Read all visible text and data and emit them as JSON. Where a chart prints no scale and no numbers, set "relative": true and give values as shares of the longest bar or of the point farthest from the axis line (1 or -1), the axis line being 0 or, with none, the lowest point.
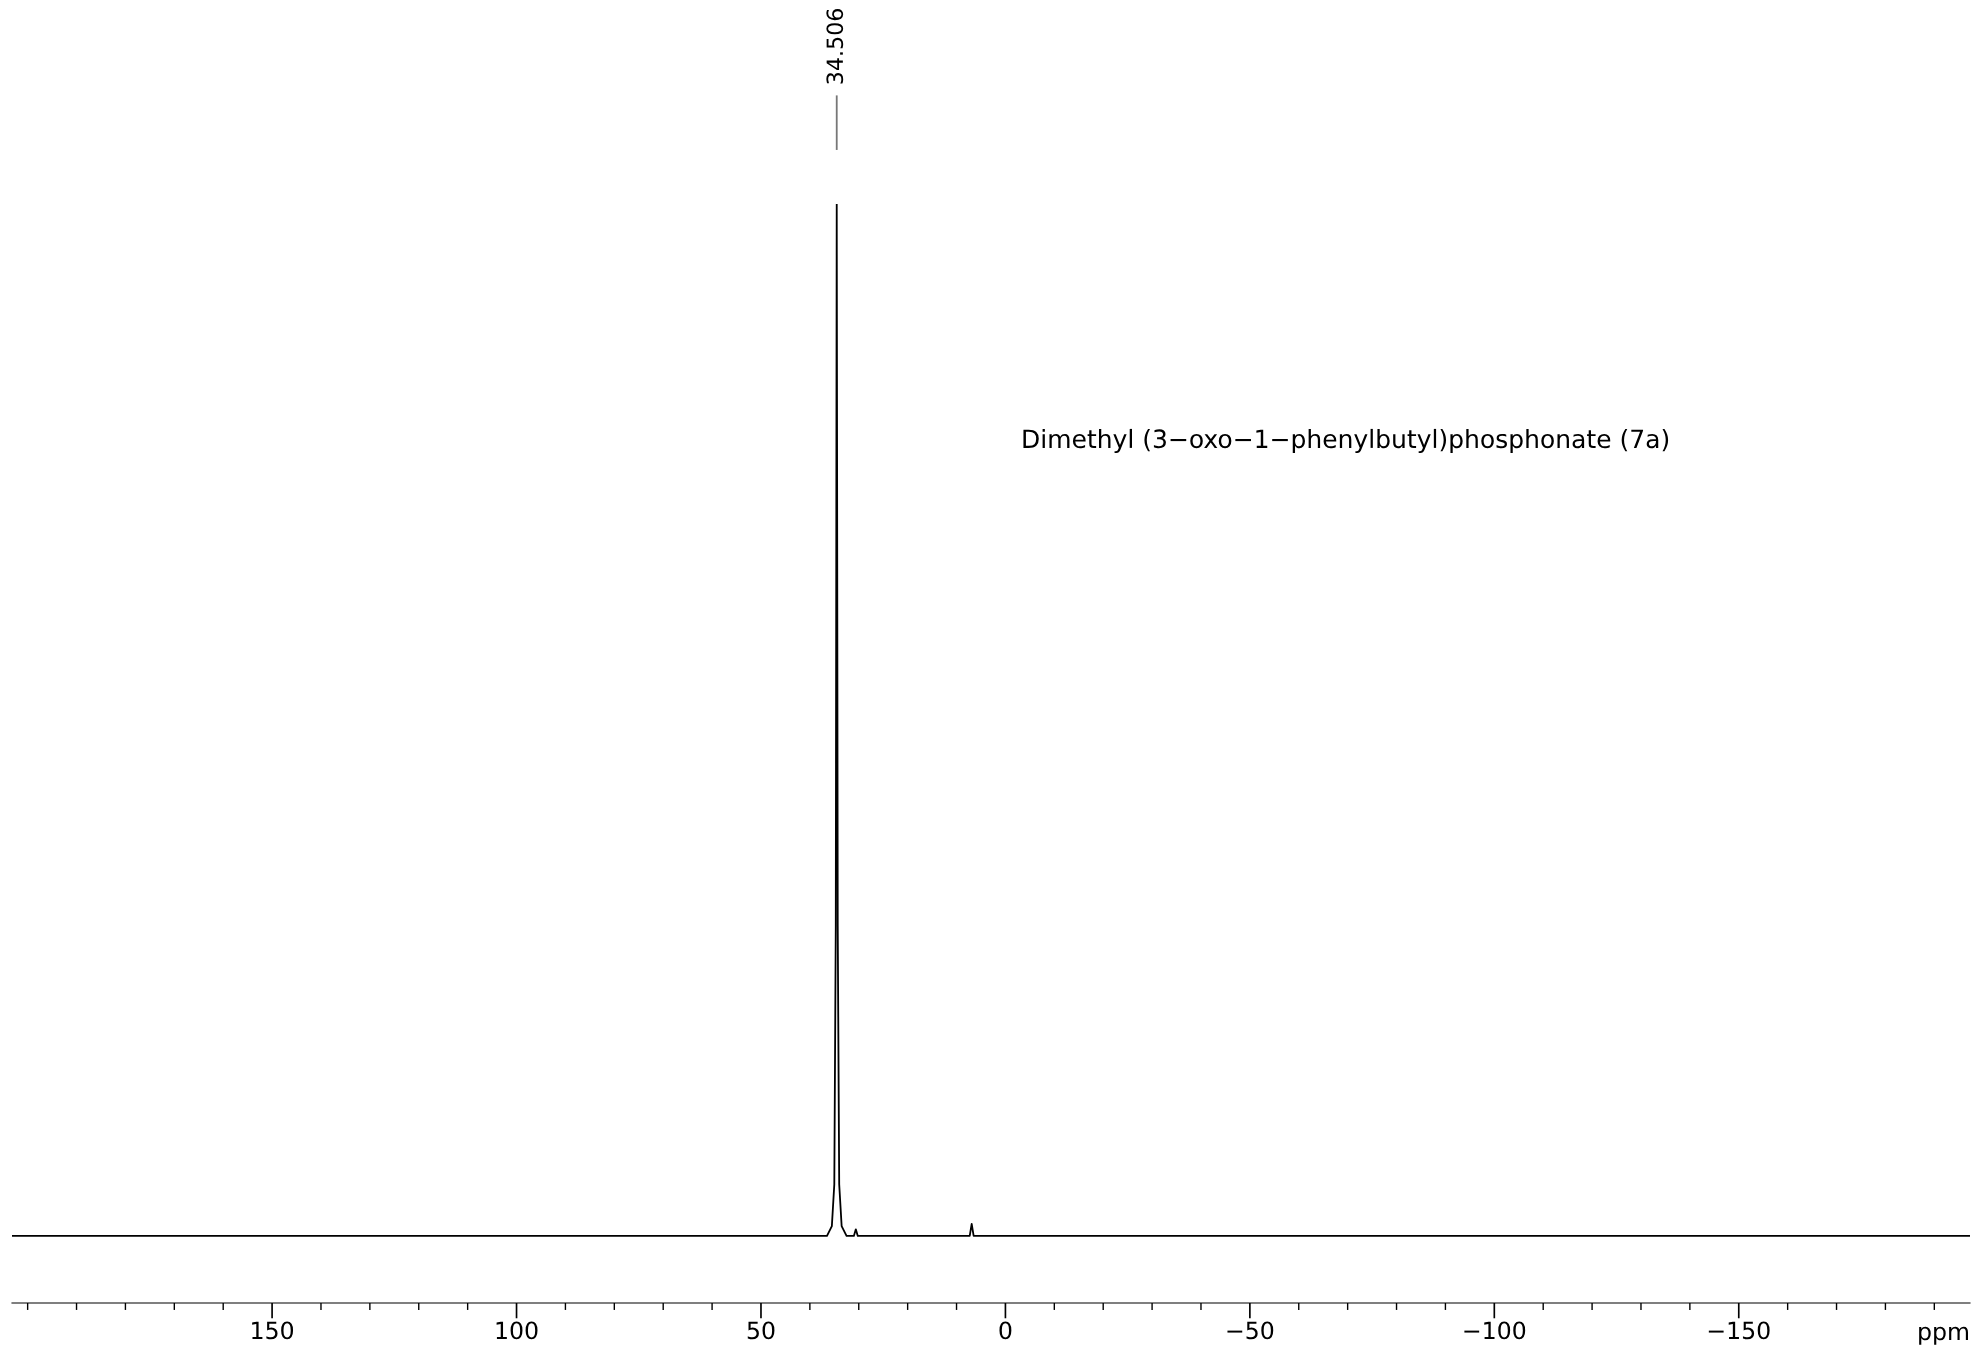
{
  "chart_data": {
    "type": "line",
    "title": "Dimethyl (3−oxo−1−phenylbutyl)phosphonate (7a)",
    "xlabel": "ppm",
    "relative": true,
    "color": "#000000",
    "x": [
      203.2,
      100,
      40,
      36.5,
      35.5,
      35.0,
      34.7,
      34.506,
      34.3,
      34.0,
      33.5,
      32.5,
      31.0,
      30.6,
      30.2,
      20,
      7.3,
      6.9,
      6.5,
      -100,
      -197.3
    ],
    "values": [
      0.061,
      0.061,
      0.061,
      0.061,
      0.07,
      0.108,
      0.343,
      1,
      0.343,
      0.108,
      0.07,
      0.061,
      0.061,
      0.067,
      0.061,
      0.061,
      0.061,
      0.072,
      0.061,
      0.061,
      0.061
    ],
    "xlim": [
      203.2,
      -197.3
    ],
    "xticks": [
      150,
      100,
      50,
      0,
      {
        "value": -50,
        "label": "−50"
      },
      {
        "value": -100,
        "label": "−100"
      },
      {
        "value": -150,
        "label": "−150"
      }
    ],
    "annotations": [
      "34.506"
    ],
    "grid": false,
    "legend": false,
    "marker": "none",
    "line_style": "solid"
  }
}
